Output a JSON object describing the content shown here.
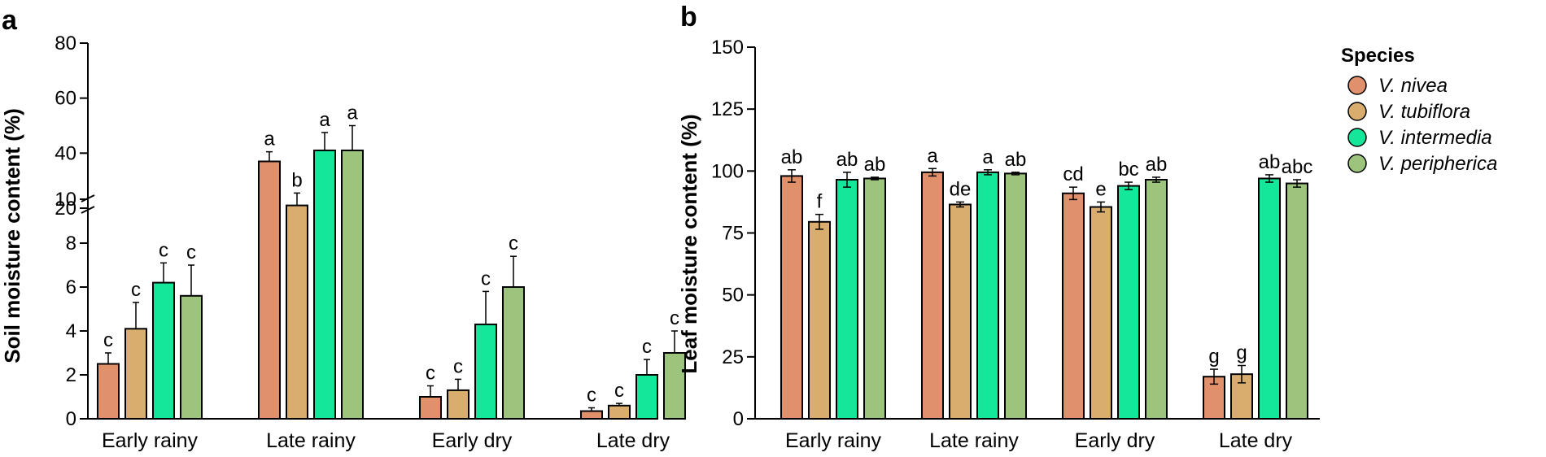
{
  "colors": {
    "V. nivea": "#e0906a",
    "V. tubiflora": "#d9ad6e",
    "V. intermedia": "#14e69a",
    "V. peripherica": "#9cc47c"
  },
  "legend": {
    "title": "Species",
    "items": [
      "V. nivea",
      "V. tubiflora",
      "V. intermedia",
      "V. peripherica"
    ]
  },
  "chart_data": [
    {
      "panel": "a",
      "type": "bar",
      "ylabel": "Soil moisture content (%)",
      "categories": [
        "Early rainy",
        "Late rainy",
        "Early dry",
        "Late dry"
      ],
      "y_axis_break": {
        "lower_range": [
          0,
          10
        ],
        "upper_range": [
          20,
          80
        ]
      },
      "lower_ticks": [
        0,
        2,
        4,
        6,
        8,
        10
      ],
      "upper_ticks": [
        20,
        40,
        60,
        80
      ],
      "series": [
        {
          "name": "V. nivea",
          "values": [
            2.5,
            37,
            1.0,
            0.35
          ],
          "errors": [
            0.5,
            3.5,
            0.5,
            0.15
          ],
          "letters": [
            "c",
            "a",
            "c",
            "c"
          ]
        },
        {
          "name": "V. tubiflora",
          "values": [
            4.1,
            21,
            1.3,
            0.6
          ],
          "errors": [
            1.2,
            4.5,
            0.5,
            0.1
          ],
          "letters": [
            "c",
            "b",
            "c",
            "c"
          ]
        },
        {
          "name": "V. intermedia",
          "values": [
            6.2,
            41,
            4.3,
            2.0
          ],
          "errors": [
            0.9,
            6.5,
            1.5,
            0.7
          ],
          "letters": [
            "c",
            "a",
            "c",
            "c"
          ]
        },
        {
          "name": "V. peripherica",
          "values": [
            5.6,
            41,
            6.0,
            3.0
          ],
          "errors": [
            1.4,
            9.0,
            1.4,
            1.0
          ],
          "letters": [
            "c",
            "a",
            "c",
            "c"
          ]
        }
      ]
    },
    {
      "panel": "b",
      "type": "bar",
      "ylabel": "Leaf moisture content  (%)",
      "categories": [
        "Early rainy",
        "Late rainy",
        "Early dry",
        "Late dry"
      ],
      "ylim": [
        0,
        150
      ],
      "ticks": [
        0,
        25,
        50,
        75,
        100,
        125,
        150
      ],
      "series": [
        {
          "name": "V. nivea",
          "values": [
            98,
            99.5,
            91,
            17
          ],
          "errors": [
            2.5,
            1.5,
            2.5,
            3.0
          ],
          "letters": [
            "ab",
            "a",
            "cd",
            "g"
          ]
        },
        {
          "name": "V. tubiflora",
          "values": [
            79.5,
            86.5,
            85.5,
            18
          ],
          "errors": [
            3.0,
            1.0,
            2.0,
            3.5
          ],
          "letters": [
            "f",
            "de",
            "e",
            "g"
          ]
        },
        {
          "name": "V. intermedia",
          "values": [
            96.5,
            99.5,
            94,
            97
          ],
          "errors": [
            3.0,
            1.0,
            1.5,
            1.5
          ],
          "letters": [
            "ab",
            "a",
            "bc",
            "ab"
          ]
        },
        {
          "name": "V. peripherica",
          "values": [
            97,
            99,
            96.5,
            95
          ],
          "errors": [
            0.5,
            0.5,
            1.0,
            1.5
          ],
          "letters": [
            "ab",
            "ab",
            "ab",
            "abc"
          ]
        }
      ]
    }
  ]
}
